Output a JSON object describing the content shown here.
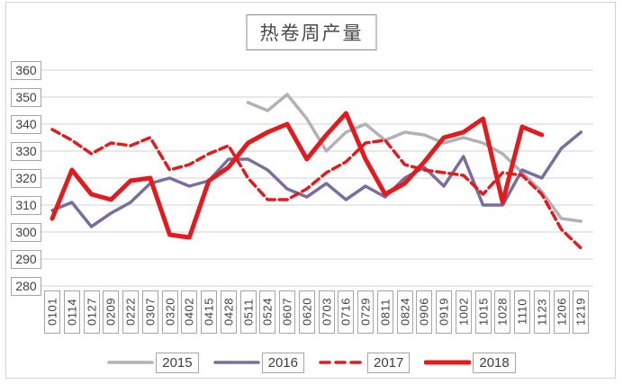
{
  "chart_data": {
    "type": "line",
    "title": "热卷周产量",
    "categories": [
      "0101",
      "0114",
      "0127",
      "0209",
      "0222",
      "0307",
      "0320",
      "0402",
      "0415",
      "0428",
      "0511",
      "0524",
      "0607",
      "0620",
      "0703",
      "0716",
      "0729",
      "0811",
      "0824",
      "0906",
      "0919",
      "1002",
      "1015",
      "1028",
      "1110",
      "1123",
      "1206",
      "1219"
    ],
    "series": [
      {
        "name": "2015",
        "color": "#b1b1ba",
        "style": "solid",
        "width": 3.5,
        "start_index": 10,
        "values": [
          348,
          345,
          351,
          342,
          330,
          337,
          340,
          334,
          337,
          336,
          333,
          335,
          333,
          329,
          322,
          315,
          305,
          304
        ]
      },
      {
        "name": "2016",
        "color": "#7a6e9f",
        "style": "solid",
        "width": 3.5,
        "start_index": 0,
        "values": [
          308,
          311,
          302,
          307,
          311,
          318,
          320,
          317,
          319,
          327,
          327,
          323,
          316,
          313,
          318,
          312,
          317,
          313,
          320,
          324,
          317,
          328,
          310,
          310,
          323,
          320,
          331,
          337
        ]
      },
      {
        "name": "2017",
        "color": "#e11b1e",
        "style": "dashed",
        "width": 3.5,
        "start_index": 0,
        "values": [
          338,
          334,
          329,
          333,
          332,
          335,
          323,
          325,
          329,
          332,
          320,
          312,
          312,
          316,
          322,
          326,
          333,
          334,
          325,
          323,
          322,
          321,
          314,
          322,
          321,
          314,
          301,
          294
        ]
      },
      {
        "name": "2018",
        "color": "#e11b1e",
        "style": "solid",
        "width": 5,
        "start_index": 0,
        "values": [
          305,
          323,
          314,
          312,
          319,
          320,
          299,
          298,
          319,
          324,
          333,
          337,
          340,
          327,
          336,
          344,
          327,
          314,
          318,
          326,
          335,
          337,
          342,
          311,
          339,
          336
        ]
      }
    ],
    "ylim": [
      280,
      360
    ],
    "yticks": [
      280,
      290,
      300,
      310,
      320,
      330,
      340,
      350,
      360
    ],
    "grid": true,
    "gridline_color": "#d9d9d9",
    "legend_position": "bottom"
  }
}
